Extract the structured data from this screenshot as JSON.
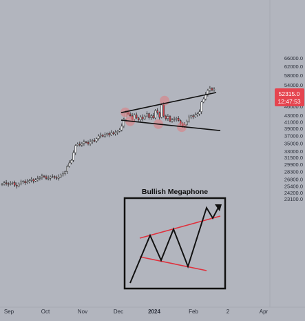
{
  "chart_data": {
    "type": "candlestick",
    "title": "",
    "xlabel": "",
    "ylabel": "",
    "scale": "log",
    "ylim": [
      22000,
      70000
    ],
    "y_ticks": [
      66000.0,
      62000.0,
      58000.0,
      54000.0,
      50000.0,
      46000.0,
      43000.0,
      41000.0,
      39000.0,
      37000.0,
      35000.0,
      33000.0,
      31500.0,
      29900.0,
      28300.0,
      26800.0,
      25400.0,
      24200.0,
      23100.0
    ],
    "y_tick_labels": [
      "66000.0",
      "62000.0",
      "58000.0",
      "54000.0",
      "50000.0",
      "46000.0",
      "43000.0",
      "41000.0",
      "39000.0",
      "37000.0",
      "35000.0",
      "33000.0",
      "31500.0",
      "29900.0",
      "28300.0",
      "26800.0",
      "25400.0",
      "24200.0",
      "23100.0"
    ],
    "x_ticks": [
      "Sep",
      "Oct",
      "Nov",
      "Dec",
      "2024",
      "Feb",
      "2",
      "Apr"
    ],
    "grid": false,
    "last_price": {
      "value": 52315.0,
      "label": "52315.0",
      "countdown": "12:47:53"
    },
    "colors": {
      "background": "#b2b5be",
      "up": "#ffffff",
      "down": "#e0444e",
      "wick": "#202020",
      "price_badge": "#e5444f",
      "marker": "#e07a7e"
    },
    "close_prices": [
      25800,
      26050,
      25900,
      25750,
      25950,
      26100,
      25600,
      25400,
      25850,
      26200,
      26350,
      26050,
      26250,
      26500,
      26700,
      26400,
      26600,
      26900,
      27100,
      27400,
      27250,
      26900,
      26950,
      27200,
      27300,
      27100,
      26950,
      27200,
      27600,
      27900,
      28300,
      29400,
      30200,
      30800,
      32600,
      34400,
      34700,
      34500,
      34900,
      35300,
      35200,
      34800,
      35400,
      35700,
      35500,
      36200,
      36900,
      37100,
      36800,
      37300,
      37600,
      37200,
      37800,
      37500,
      37900,
      38200,
      38600,
      39700,
      41800,
      43900,
      43500,
      42900,
      41800,
      43200,
      42200,
      41600,
      42500,
      41900,
      42800,
      43600,
      42300,
      42900,
      42200,
      44600,
      43900,
      42400,
      46500,
      42800,
      42000,
      42700,
      41200,
      41600,
      41800,
      42100,
      41400,
      40400,
      39800,
      40100,
      41200,
      42500,
      42900,
      42600,
      43100,
      43500,
      44200,
      47500,
      48600,
      50200,
      51800,
      52600,
      51900,
      52315
    ],
    "pattern": {
      "name": "broadening formation",
      "upper_trendline": [
        {
          "x": "Dec",
          "y": 43900
        },
        {
          "x": "Feb",
          "y": 51000
        }
      ],
      "lower_trendline": [
        {
          "x": "Dec",
          "y": 41500
        },
        {
          "x": "Feb",
          "y": 38400
        }
      ],
      "touch_points": [
        44000,
        41200,
        48000,
        40300,
        39400
      ]
    },
    "inset": {
      "title": "Bullish Megaphone"
    }
  }
}
